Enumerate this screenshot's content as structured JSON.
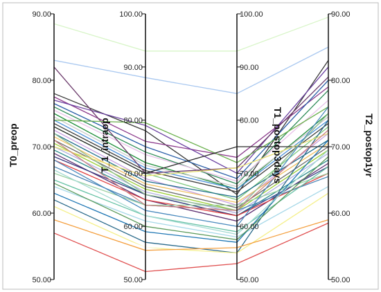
{
  "chart_data": {
    "type": "parallel_coordinates",
    "axes": [
      {
        "name": "T0_preop",
        "range": [
          50,
          90
        ],
        "ticks": [
          "50.00",
          "60.00",
          "70.00",
          "80.00",
          "90.00"
        ],
        "tick_side": "left",
        "title_side": "left"
      },
      {
        "name": "T_1_intraop",
        "range": [
          50,
          100
        ],
        "ticks": [
          "50.00",
          "60.00",
          "70.00",
          "80.00",
          "90.00",
          "100.00"
        ],
        "tick_side": "left",
        "title_side": "left"
      },
      {
        "name": "T1_postop3days",
        "range": [
          50,
          100
        ],
        "ticks": [
          "50.00",
          "60.00",
          "70.00",
          "80.00",
          "90.00",
          "100.00"
        ],
        "tick_side": "right",
        "title_side": "right"
      },
      {
        "name": "T2_postop1yr",
        "range": [
          50,
          90
        ],
        "ticks": [
          "50.00",
          "60.00",
          "70.00",
          "80.00",
          "90.00"
        ],
        "tick_side": "right",
        "title_side": "right"
      }
    ],
    "series": [
      {
        "values": [
          88.5,
          93,
          93,
          89.5
        ],
        "color": "#d8f5c8"
      },
      {
        "values": [
          83,
          88,
          85,
          85
        ],
        "color": "#a9c8f0"
      },
      {
        "values": [
          78,
          78,
          66,
          83
        ],
        "color": "#3a3a3a"
      },
      {
        "values": [
          77.5,
          76,
          73,
          79
        ],
        "color": "#8b3a8b"
      },
      {
        "values": [
          77,
          79,
          70,
          82
        ],
        "color": "#6a3fa0"
      },
      {
        "values": [
          76.5,
          75,
          69,
          80
        ],
        "color": "#2b5fa8"
      },
      {
        "values": [
          76,
          74,
          68,
          78.5
        ],
        "color": "#2e8b57"
      },
      {
        "values": [
          75.5,
          73.5,
          68.5,
          77
        ],
        "color": "#e8c0e8"
      },
      {
        "values": [
          75,
          72,
          67,
          75
        ],
        "color": "#1f8f3a"
      },
      {
        "values": [
          74.5,
          71.5,
          67.5,
          74.5
        ],
        "color": "#c8c8c8"
      },
      {
        "values": [
          74,
          71,
          67,
          74
        ],
        "color": "#4a90d9"
      },
      {
        "values": [
          73.5,
          70.5,
          66.5,
          73.5
        ],
        "color": "#3c3c3c"
      },
      {
        "values": [
          73,
          70,
          65,
          73
        ],
        "color": "#7ec87e"
      },
      {
        "values": [
          72.5,
          69,
          64,
          72
        ],
        "color": "#c8a0e0"
      },
      {
        "values": [
          72,
          68.5,
          65.5,
          71
        ],
        "color": "#1a6b8a"
      },
      {
        "values": [
          71.5,
          68,
          64.5,
          70.5
        ],
        "color": "#f0c060"
      },
      {
        "values": [
          71,
          67.5,
          63.5,
          70
        ],
        "color": "#6a6a6a"
      },
      {
        "values": [
          70.5,
          67,
          63,
          69.5
        ],
        "color": "#9acd32"
      },
      {
        "values": [
          70,
          66.5,
          62.5,
          69
        ],
        "color": "#b0b0e0"
      },
      {
        "values": [
          69.5,
          66,
          62,
          68
        ],
        "color": "#2a8a8a"
      },
      {
        "values": [
          69,
          65,
          61,
          67.5
        ],
        "color": "#5b2c6f"
      },
      {
        "values": [
          68.5,
          66,
          62,
          67
        ],
        "color": "#3a3a80"
      },
      {
        "values": [
          68,
          65,
          62,
          66
        ],
        "color": "#e04040"
      },
      {
        "values": [
          67,
          64,
          63,
          65.5
        ],
        "color": "#4682b4"
      },
      {
        "values": [
          66,
          64,
          64,
          66
        ],
        "color": "#9ad0a0"
      },
      {
        "values": [
          65,
          62,
          59,
          67
        ],
        "color": "#66c2a5"
      },
      {
        "values": [
          64,
          61,
          58,
          64
        ],
        "color": "#a6d8e8"
      },
      {
        "values": [
          63,
          59,
          57,
          71
        ],
        "color": "#1f77b4"
      },
      {
        "values": [
          62,
          57,
          55,
          74
        ],
        "color": "#2a6a8a"
      },
      {
        "values": [
          61,
          56,
          55,
          63
        ],
        "color": "#f5f08c"
      },
      {
        "values": [
          60,
          56,
          54,
          62
        ],
        "color": "#ffffff"
      },
      {
        "values": [
          59,
          55.5,
          56,
          59
        ],
        "color": "#f4a040"
      },
      {
        "values": [
          57,
          51.5,
          53,
          58.5
        ],
        "color": "#e05050"
      },
      {
        "values": [
          82,
          70,
          71,
          80.5
        ],
        "color": "#6b3a6b"
      },
      {
        "values": [
          74,
          79.5,
          72,
          76
        ],
        "color": "#6ab04c"
      },
      {
        "values": [
          73,
          70,
          75,
          70
        ],
        "color": "#2a2a2a"
      },
      {
        "values": [
          72,
          66,
          63,
          75
        ],
        "color": "#8fbc8f"
      },
      {
        "values": [
          70,
          69.5,
          71,
          72
        ],
        "color": "#e8e070"
      },
      {
        "values": [
          68,
          63,
          60,
          76
        ],
        "color": "#4b8bbe"
      },
      {
        "values": [
          66.5,
          62,
          58.5,
          69.5
        ],
        "color": "#a0d8d0"
      },
      {
        "values": [
          64.5,
          60,
          57.5,
          68.5
        ],
        "color": "#5a9a5a"
      },
      {
        "values": [
          71,
          64,
          63,
          72.5
        ],
        "color": "#cc8080"
      }
    ]
  }
}
